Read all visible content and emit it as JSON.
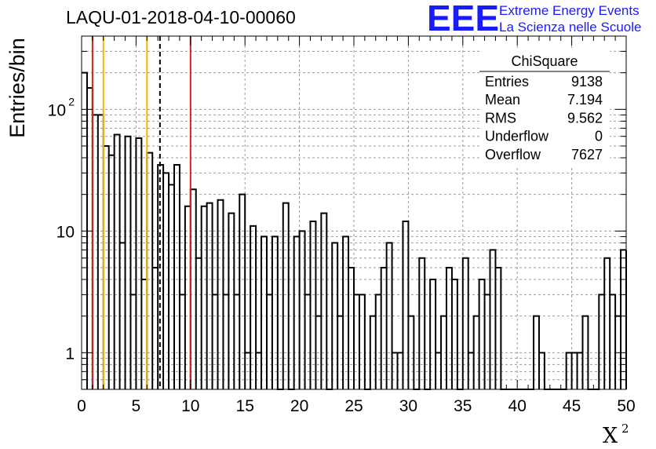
{
  "header": {
    "title": "LAQU-01-2018-04-10-00060"
  },
  "logo": {
    "mark": "EEE",
    "line1": "Extreme Energy Events",
    "line2": "La Scienza nelle Scuole",
    "color": "#1a1aff"
  },
  "stats": {
    "title": "ChiSquare",
    "rows": [
      {
        "label": "Entries",
        "value": "9138"
      },
      {
        "label": "Mean",
        "value": "7.194"
      },
      {
        "label": "RMS",
        "value": "9.562"
      },
      {
        "label": "Underflow",
        "value": "0"
      },
      {
        "label": "Overflow",
        "value": "7627"
      }
    ]
  },
  "chart_data": {
    "type": "histogram",
    "title": "LAQU-01-2018-04-10-00060",
    "xlabel": "X",
    "xlabel_superscript": "2",
    "ylabel": "Entries/bin",
    "xlim": [
      0,
      50
    ],
    "ylim": [
      0.5,
      400
    ],
    "yscale": "log",
    "grid": true,
    "bin_width": 0.5,
    "x_ticks": [
      "0",
      "5",
      "10",
      "15",
      "20",
      "25",
      "30",
      "35",
      "40",
      "45",
      "50"
    ],
    "y_ticks": [
      {
        "value": 1,
        "base": "1",
        "exp": ""
      },
      {
        "value": 10,
        "base": "10",
        "exp": ""
      },
      {
        "value": 100,
        "base": "10",
        "exp": "2"
      }
    ],
    "values": [
      200,
      150,
      90,
      90,
      50,
      42,
      62,
      8,
      60,
      3,
      58,
      4,
      44,
      5,
      35,
      30,
      24,
      35,
      3,
      16,
      22,
      6,
      16,
      17,
      3,
      18,
      3,
      14,
      3,
      20,
      1,
      11,
      1,
      9,
      3,
      9,
      0,
      17,
      0,
      9,
      10,
      3,
      12,
      2,
      14,
      0,
      8,
      2,
      9,
      5,
      3,
      3,
      0,
      2,
      3,
      5,
      8,
      1,
      1,
      12,
      2,
      0,
      6,
      0,
      4,
      1,
      2,
      5,
      4,
      0,
      6,
      1,
      2,
      4,
      3,
      7,
      5,
      0,
      0,
      0,
      0,
      0,
      0,
      2,
      1,
      0,
      0,
      0,
      0,
      1,
      1,
      1,
      2,
      0,
      0,
      3,
      6,
      3,
      2,
      7
    ],
    "reference_lines": [
      {
        "x": 1,
        "color": "#d42020",
        "style": "solid"
      },
      {
        "x": 2,
        "color": "#f2b600",
        "style": "solid"
      },
      {
        "x": 6,
        "color": "#f2b600",
        "style": "solid"
      },
      {
        "x": 7.194,
        "color": "#000000",
        "style": "dashed"
      },
      {
        "x": 10,
        "color": "#d42020",
        "style": "solid"
      }
    ]
  }
}
